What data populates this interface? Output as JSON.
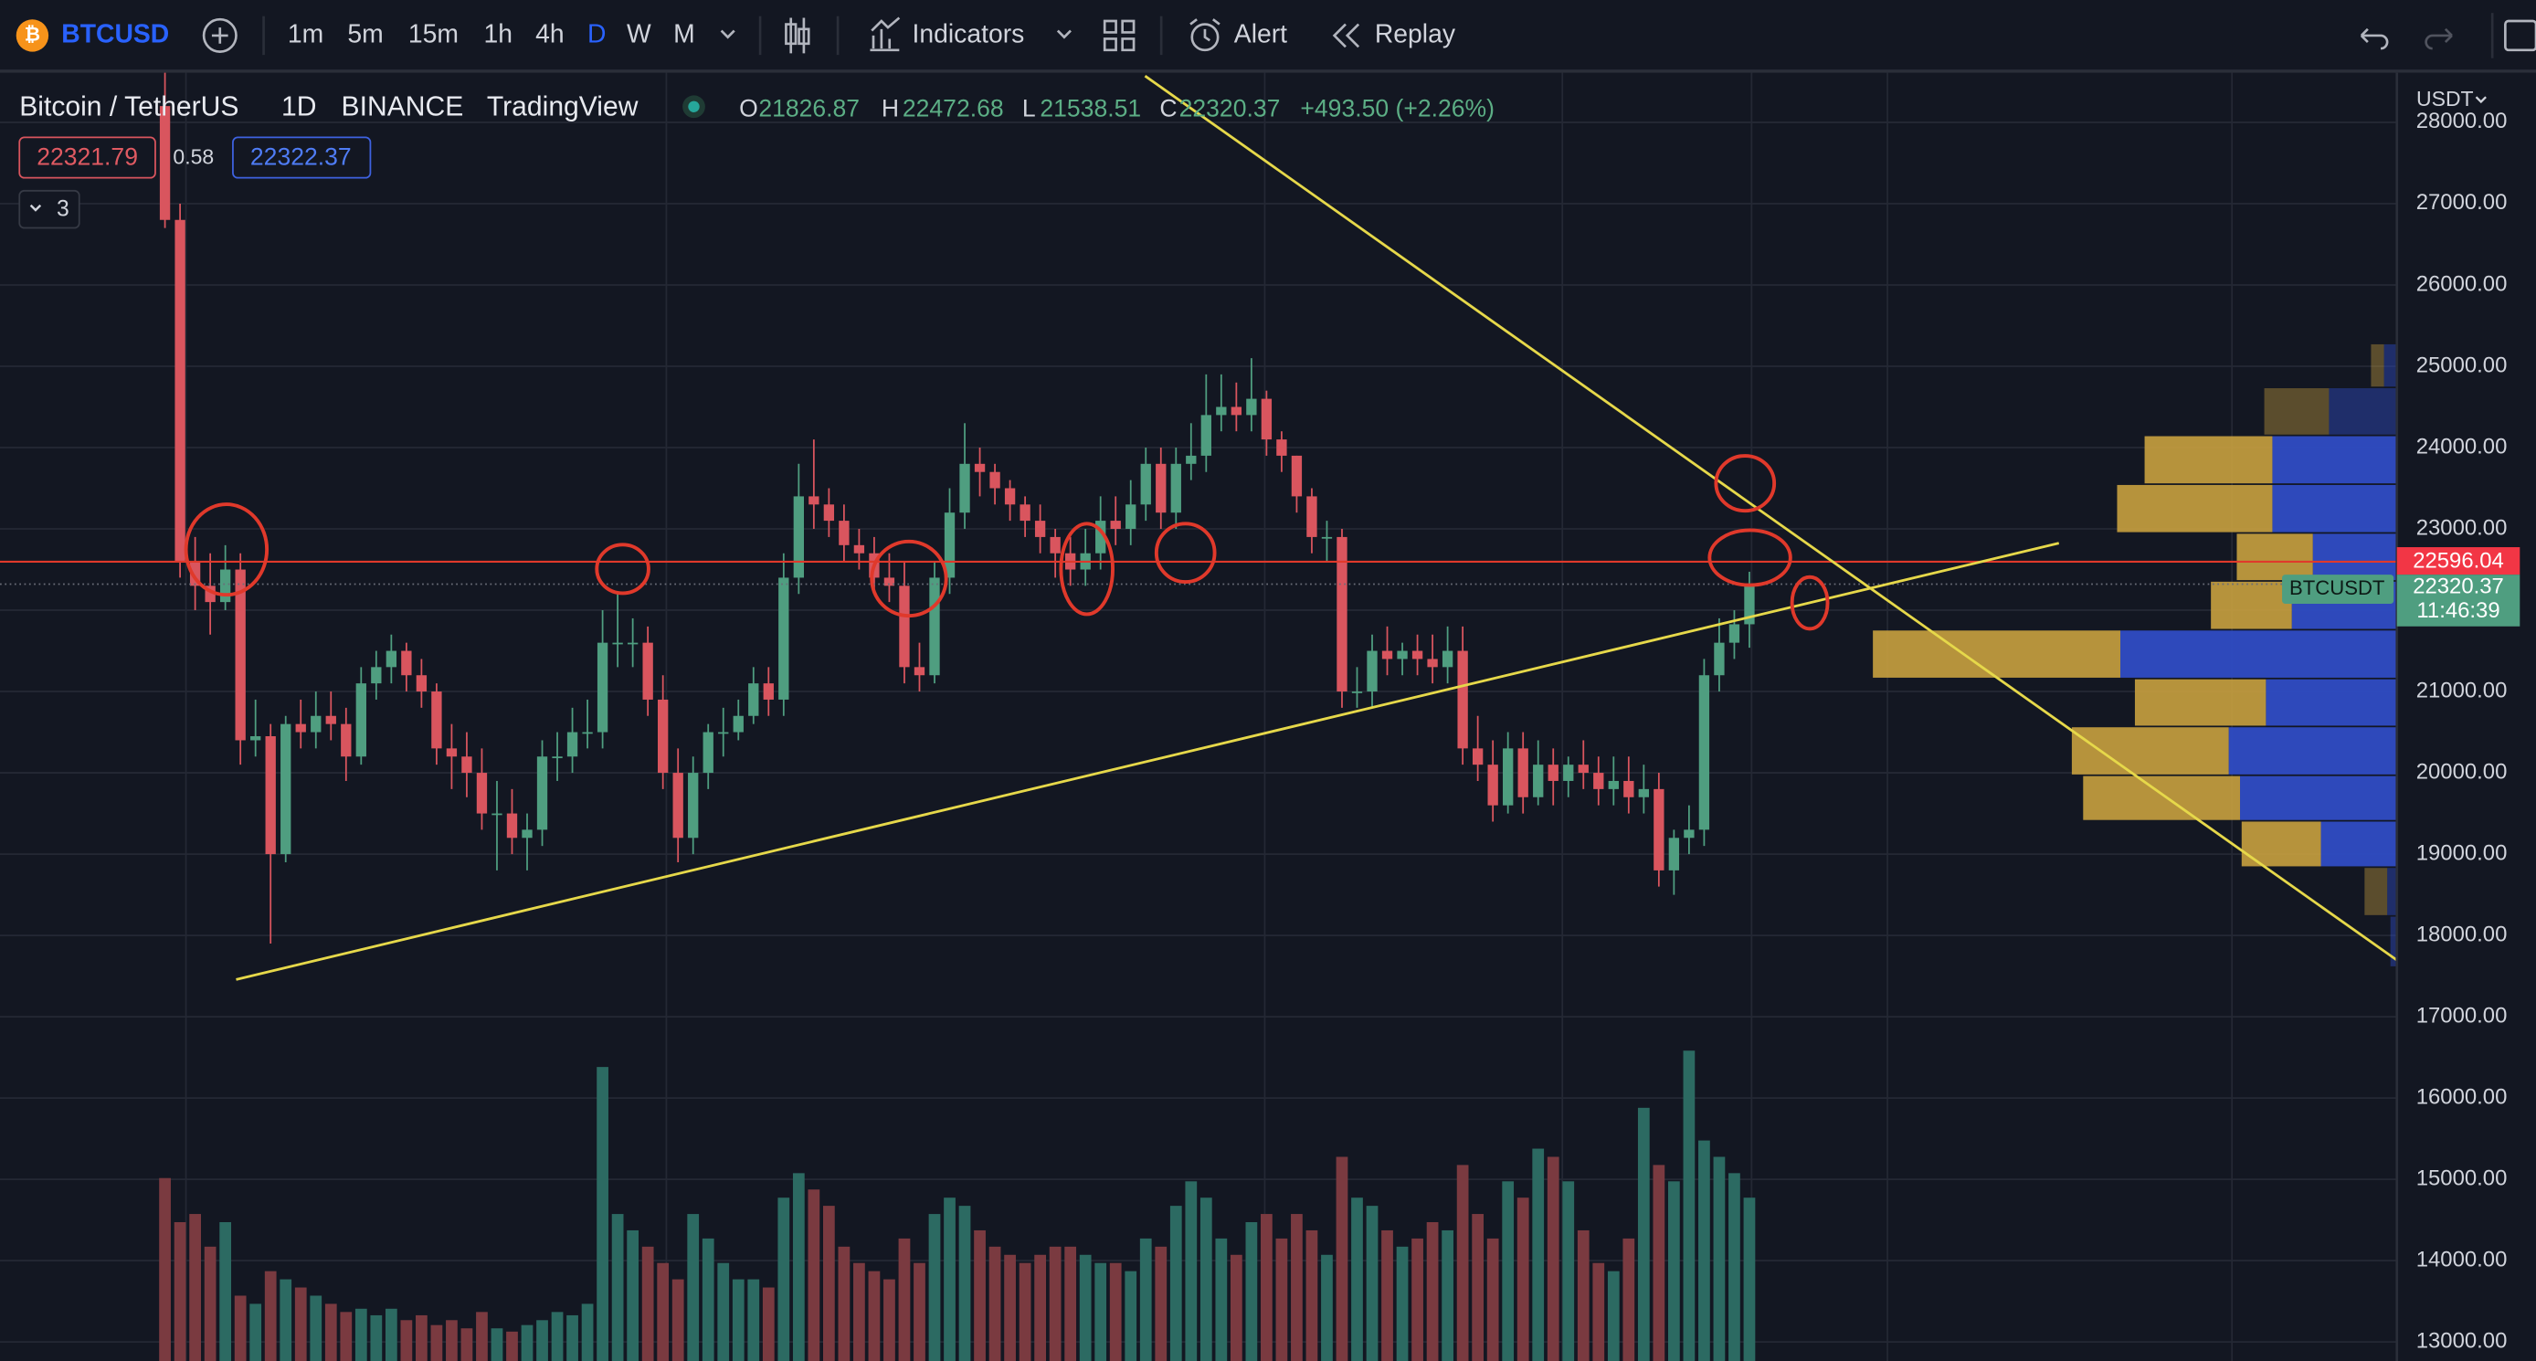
{
  "toolbar": {
    "symbol": "BTCUSD",
    "intervals": [
      "1m",
      "5m",
      "15m",
      "1h",
      "4h",
      "D",
      "W",
      "M"
    ],
    "indicators": "Indicators",
    "alert": "Alert",
    "replay": "Replay"
  },
  "legend": {
    "name": "Bitcoin / TetherUS",
    "interval": "1D",
    "exchange": "BINANCE",
    "source": "TradingView",
    "o": "O",
    "h": "H",
    "l": "L",
    "c": "C",
    "change": "+493.50 (+2.26%)",
    "bid": 22321.79,
    "spread": 0.58,
    "ask": 22322.37,
    "indicator_count": 3
  },
  "chart_data": {
    "type": "candlestick",
    "currency": "USDT",
    "symbol_label": "BTCUSDT",
    "countdown": "11:46:39",
    "alert_line": 22596.04,
    "up_color": "#4f9e80",
    "down_color": "#d9555e",
    "volume_up_color": "#2c6a62",
    "volume_down_color": "#7a3a40",
    "ylim": [
      12766,
      28610
    ],
    "yticks": [
      {
        "value": 28000,
        "label": "28000.00"
      },
      {
        "value": 27000,
        "label": "27000.00"
      },
      {
        "value": 26000,
        "label": "26000.00"
      },
      {
        "value": 25000,
        "label": "25000.00"
      },
      {
        "value": 24000,
        "label": "24000.00"
      },
      {
        "value": 23000,
        "label": "23000.00"
      },
      {
        "value": 22000,
        "label": "22000.00"
      },
      {
        "value": 21000,
        "label": "21000.00"
      },
      {
        "value": 20000,
        "label": "20000.00"
      },
      {
        "value": 19000,
        "label": "19000.00"
      },
      {
        "value": 18000,
        "label": "18000.00"
      },
      {
        "value": 17000,
        "label": "17000.00"
      },
      {
        "value": 16000,
        "label": "16000.00"
      },
      {
        "value": 15000,
        "label": "15000.00"
      },
      {
        "value": 14000,
        "label": "14000.00"
      },
      {
        "value": 13000,
        "label": "13000.00"
      }
    ],
    "open": [
      28200,
      26800,
      22600,
      22300,
      22100,
      22500,
      20400,
      20450,
      19000,
      20600,
      20500,
      20700,
      20600,
      20200,
      21100,
      21300,
      21500,
      21200,
      21000,
      20300,
      20200,
      20000,
      19500,
      19500,
      19200,
      19300,
      20200,
      20200,
      20500,
      20500,
      21600,
      21600,
      21600,
      20900,
      20000,
      19200,
      20000,
      20500,
      20500,
      20700,
      21100,
      20900,
      22400,
      23400,
      23300,
      23100,
      22800,
      22700,
      22400,
      22300,
      21300,
      21200,
      22400,
      23200,
      23800,
      23700,
      23500,
      23300,
      23100,
      22900,
      22700,
      22500,
      22700,
      23100,
      23000,
      23300,
      23800,
      23200,
      23800,
      23900,
      24400,
      24500,
      24400,
      24600,
      24100,
      23900,
      23400,
      22900,
      22900,
      21000,
      21000,
      21500,
      21400,
      21500,
      21400,
      21300,
      21500,
      20300,
      20100,
      19600,
      20300,
      19700,
      20100,
      19900,
      20100,
      20000,
      19800,
      19900,
      19700,
      19800,
      18800,
      19200,
      19300,
      21200,
      21600,
      21826.87
    ],
    "high": [
      28700,
      27000,
      22900,
      22700,
      22800,
      22700,
      20900,
      20600,
      20700,
      20900,
      21000,
      21000,
      20800,
      21300,
      21500,
      21700,
      21600,
      21400,
      21100,
      20600,
      20500,
      20300,
      19900,
      19800,
      19500,
      20400,
      20500,
      20800,
      20900,
      22000,
      22200,
      21900,
      21800,
      21200,
      20300,
      20200,
      20600,
      20800,
      20900,
      21300,
      21300,
      22700,
      23800,
      24100,
      23500,
      23300,
      23000,
      22900,
      22700,
      22600,
      21600,
      22600,
      23500,
      24300,
      24000,
      23800,
      23600,
      23400,
      23300,
      23000,
      22900,
      23000,
      23400,
      23400,
      23600,
      24000,
      24000,
      24000,
      24300,
      24900,
      24900,
      24800,
      25100,
      24700,
      24200,
      23900,
      23500,
      23100,
      23000,
      21300,
      21700,
      21800,
      21600,
      21700,
      21700,
      21800,
      21800,
      20700,
      20400,
      20500,
      20500,
      20400,
      20300,
      20200,
      20400,
      20200,
      20200,
      20200,
      20100,
      20000,
      19300,
      19600,
      21400,
      21900,
      22000,
      22472.68
    ],
    "low": [
      26700,
      22400,
      22000,
      21700,
      22000,
      20100,
      20200,
      17900,
      18900,
      20300,
      20300,
      20400,
      19900,
      20100,
      20900,
      21100,
      21000,
      20800,
      20100,
      19800,
      19700,
      19300,
      18800,
      19000,
      18800,
      19100,
      19900,
      20000,
      20300,
      20300,
      21300,
      21300,
      20700,
      19800,
      18900,
      19000,
      19800,
      20200,
      20400,
      20600,
      20700,
      20700,
      22200,
      23000,
      22900,
      22600,
      22500,
      22200,
      22100,
      21100,
      21000,
      21100,
      22200,
      23000,
      23400,
      23300,
      23100,
      22900,
      22700,
      22400,
      22300,
      22300,
      22500,
      22800,
      22800,
      23100,
      23000,
      23000,
      23600,
      23700,
      24200,
      24200,
      24200,
      23900,
      23700,
      23200,
      22700,
      22600,
      20800,
      20800,
      20800,
      21200,
      21200,
      21200,
      21100,
      21100,
      20100,
      19900,
      19400,
      19500,
      19500,
      19600,
      19600,
      19700,
      19800,
      19600,
      19600,
      19500,
      19500,
      18600,
      18500,
      19000,
      19100,
      21000,
      21400,
      21538.51
    ],
    "close": [
      26800,
      22600,
      22300,
      22100,
      22500,
      20400,
      20450,
      19000,
      20600,
      20500,
      20700,
      20600,
      20200,
      21100,
      21300,
      21500,
      21200,
      21000,
      20300,
      20200,
      20000,
      19500,
      19500,
      19200,
      19300,
      20200,
      20200,
      20500,
      20500,
      21600,
      21600,
      21600,
      20900,
      20000,
      19200,
      20000,
      20500,
      20500,
      20700,
      21100,
      20900,
      22400,
      23400,
      23300,
      23100,
      22800,
      22700,
      22400,
      22300,
      21300,
      21200,
      22400,
      23200,
      23800,
      23700,
      23500,
      23300,
      23100,
      22900,
      22700,
      22500,
      22700,
      23100,
      23000,
      23300,
      23800,
      23200,
      23800,
      23900,
      24400,
      24500,
      24400,
      24600,
      24100,
      23900,
      23400,
      22900,
      22900,
      21000,
      21000,
      21500,
      21400,
      21500,
      21400,
      21300,
      21500,
      20300,
      20100,
      19600,
      20300,
      19700,
      20100,
      19900,
      20100,
      20000,
      19800,
      19900,
      19700,
      19800,
      18800,
      19200,
      19300,
      21200,
      21600,
      21826.87,
      22320.37
    ],
    "volume": [
      112,
      85,
      90,
      70,
      85,
      40,
      35,
      55,
      50,
      45,
      40,
      35,
      30,
      32,
      28,
      32,
      25,
      28,
      22,
      25,
      20,
      30,
      20,
      18,
      22,
      25,
      30,
      28,
      35,
      180,
      90,
      80,
      70,
      60,
      50,
      90,
      75,
      60,
      50,
      50,
      45,
      100,
      115,
      105,
      95,
      70,
      60,
      55,
      50,
      75,
      60,
      90,
      100,
      95,
      80,
      70,
      65,
      60,
      65,
      70,
      70,
      65,
      60,
      60,
      55,
      75,
      70,
      95,
      110,
      100,
      75,
      65,
      85,
      90,
      75,
      90,
      80,
      65,
      125,
      100,
      95,
      80,
      70,
      75,
      85,
      80,
      120,
      90,
      75,
      110,
      100,
      130,
      125,
      110,
      80,
      60,
      55,
      75,
      155,
      120,
      110,
      190,
      135,
      125,
      115,
      100
    ],
    "volume_profile": {
      "up_color": "#2f4cc4",
      "down_color": "#c9a13f",
      "rows": [
        {
          "low": 24730,
          "high": 25270,
          "up": 8,
          "down": 8
        },
        {
          "low": 24140,
          "high": 24730,
          "up": 42,
          "down": 40
        },
        {
          "low": 23540,
          "high": 24140,
          "up": 77,
          "down": 79
        },
        {
          "low": 22940,
          "high": 23540,
          "up": 77,
          "down": 96
        },
        {
          "low": 22350,
          "high": 22940,
          "up": 52,
          "down": 47
        },
        {
          "low": 21750,
          "high": 22350,
          "up": 65,
          "down": 50
        },
        {
          "low": 21150,
          "high": 21750,
          "up": 171,
          "down": 153
        },
        {
          "low": 20560,
          "high": 21150,
          "up": 81,
          "down": 81
        },
        {
          "low": 19960,
          "high": 20560,
          "up": 104,
          "down": 97
        },
        {
          "low": 19400,
          "high": 19960,
          "up": 97,
          "down": 97
        },
        {
          "low": 18830,
          "high": 19400,
          "up": 47,
          "down": 49
        },
        {
          "low": 18230,
          "high": 18830,
          "up": 6,
          "down": 14
        },
        {
          "low": 17600,
          "high": 18230,
          "up": 4,
          "down": 0
        }
      ]
    }
  }
}
